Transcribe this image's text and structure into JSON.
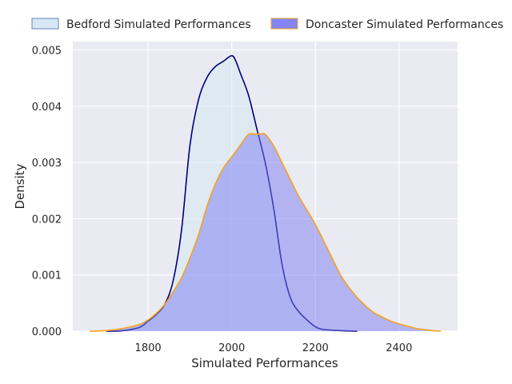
{
  "chart_data": {
    "type": "area",
    "title": "",
    "xlabel": "Simulated Performances",
    "ylabel": "Density",
    "xlim": [
      1620,
      2540
    ],
    "ylim": [
      0,
      0.00515
    ],
    "x_ticks": [
      1800,
      2000,
      2200,
      2400
    ],
    "x_tick_labels": [
      "1800",
      "2000",
      "2200",
      "2400"
    ],
    "y_ticks": [
      0.0,
      0.001,
      0.002,
      0.003,
      0.004,
      0.005
    ],
    "y_tick_labels": [
      "0.000",
      "0.001",
      "0.002",
      "0.003",
      "0.004",
      "0.005"
    ],
    "grid": true,
    "legend_position": "top (above plot, two columns)",
    "series": [
      {
        "name": "Bedford Simulated Performances",
        "fill_color": "#d5e7f2",
        "fill_opacity": 0.55,
        "line_color": "#00007f",
        "legend_edge": "#6a7fc4",
        "x": [
          1700,
          1740,
          1780,
          1800,
          1820,
          1840,
          1860,
          1880,
          1900,
          1920,
          1940,
          1960,
          1980,
          2000,
          2010,
          2020,
          2040,
          2060,
          2080,
          2100,
          2120,
          2140,
          2160,
          2180,
          2200,
          2220,
          2260,
          2300
        ],
        "y": [
          0.0,
          1e-05,
          7e-05,
          0.00018,
          0.0003,
          0.00048,
          0.0009,
          0.0018,
          0.0033,
          0.0041,
          0.0045,
          0.0047,
          0.0048,
          0.0049,
          0.0048,
          0.0046,
          0.0042,
          0.0036,
          0.003,
          0.0022,
          0.0012,
          0.0006,
          0.00035,
          0.0002,
          8e-05,
          3e-05,
          1e-05,
          0.0
        ]
      },
      {
        "name": "Doncaster Simulated Performances",
        "fill_color": "#7b7cf2",
        "fill_opacity": 0.5,
        "line_color": "#f5a31a",
        "legend_edge": "#f5a31a",
        "x": [
          1660,
          1700,
          1740,
          1780,
          1800,
          1820,
          1840,
          1860,
          1880,
          1900,
          1920,
          1940,
          1960,
          1980,
          2000,
          2020,
          2040,
          2060,
          2070,
          2080,
          2100,
          2120,
          2140,
          2160,
          2180,
          2200,
          2220,
          2240,
          2260,
          2280,
          2300,
          2320,
          2340,
          2360,
          2380,
          2400,
          2420,
          2440,
          2460,
          2480,
          2500
        ],
        "y": [
          0.0,
          1e-05,
          5e-05,
          0.00012,
          0.0002,
          0.00032,
          0.00048,
          0.0007,
          0.00095,
          0.0013,
          0.0017,
          0.0022,
          0.0026,
          0.0029,
          0.0031,
          0.0033,
          0.0035,
          0.0035,
          0.00351,
          0.0035,
          0.0033,
          0.003,
          0.0027,
          0.0024,
          0.00215,
          0.0019,
          0.0016,
          0.0013,
          0.001,
          0.00078,
          0.0006,
          0.00045,
          0.00033,
          0.00025,
          0.00018,
          0.00013,
          9e-05,
          5e-05,
          3e-05,
          1e-05,
          0.0
        ]
      }
    ]
  }
}
